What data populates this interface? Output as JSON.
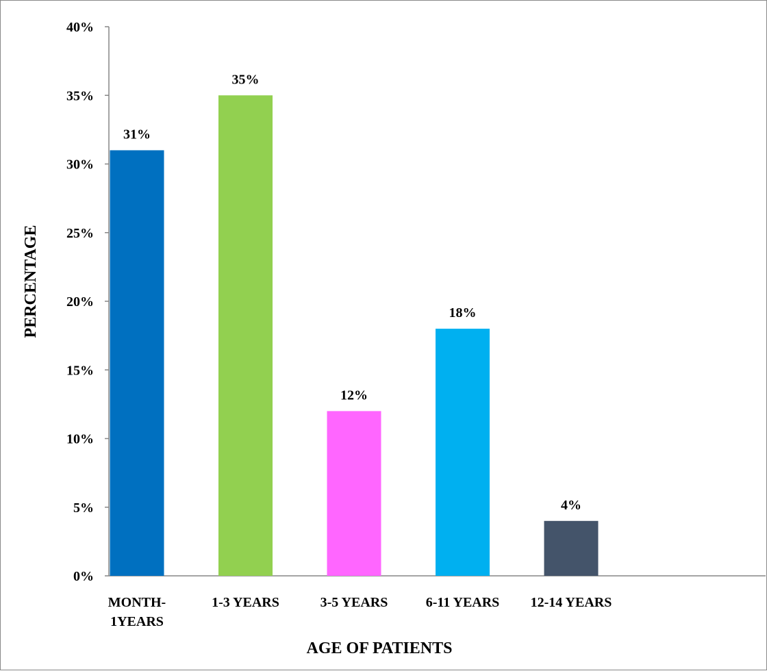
{
  "chart_data": {
    "type": "bar",
    "categories": [
      "MONTH-1YEARS",
      "1-3 YEARS",
      "3-5 YEARS",
      "6-11 YEARS",
      "12-14 YEARS"
    ],
    "category_label_lines": [
      [
        "MONTH-",
        "1YEARS"
      ],
      [
        "1-3 YEARS"
      ],
      [
        "3-5 YEARS"
      ],
      [
        "6-11 YEARS"
      ],
      [
        "12-14 YEARS"
      ]
    ],
    "values": [
      31,
      35,
      12,
      18,
      4
    ],
    "value_labels": [
      "31%",
      "35%",
      "12%",
      "18%",
      "4%"
    ],
    "colors": [
      "#0070C0",
      "#92D050",
      "#FF66FF",
      "#00B0F0",
      "#44546A"
    ],
    "title": "",
    "xlabel": "AGE OF PATIENTS",
    "ylabel": "PERCENTAGE",
    "ylim": [
      0,
      40
    ],
    "yticks": [
      0,
      5,
      10,
      15,
      20,
      25,
      30,
      35,
      40
    ],
    "ytick_labels": [
      "0%",
      "5%",
      "10%",
      "15%",
      "20%",
      "25%",
      "30%",
      "35%",
      "40%"
    ],
    "grid": false,
    "legend": "none"
  }
}
